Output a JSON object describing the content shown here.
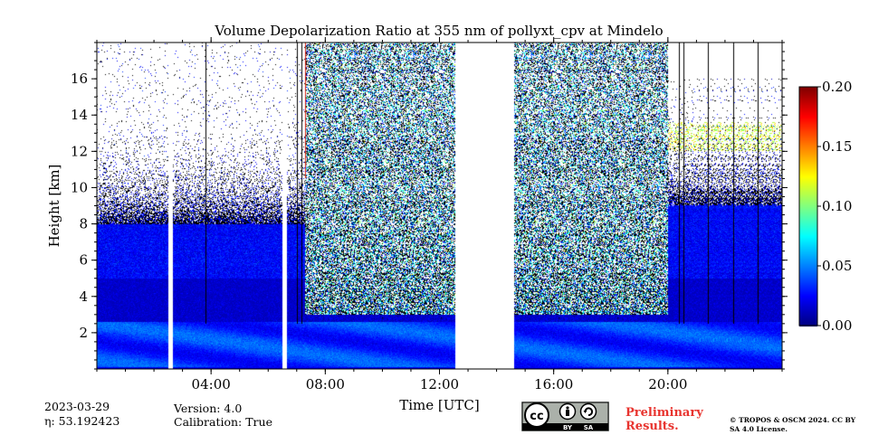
{
  "chart_data": {
    "type": "heatmap",
    "title": "Volume Depolarization Ratio at 355 nm of pollyxt_cpv at Mindelo",
    "xlabel": "Time [UTC]",
    "ylabel": "Height [km]",
    "x_unit": "hours UTC",
    "xlim": [
      0,
      24
    ],
    "ylim": [
      0,
      18
    ],
    "x_ticks": [
      {
        "value": 4,
        "label": "04:00"
      },
      {
        "value": 8,
        "label": "08:00"
      },
      {
        "value": 12,
        "label": "12:00"
      },
      {
        "value": 16,
        "label": "16:00"
      },
      {
        "value": 20,
        "label": "20:00"
      }
    ],
    "y_ticks": [
      {
        "value": 2,
        "label": "2"
      },
      {
        "value": 4,
        "label": "4"
      },
      {
        "value": 6,
        "label": "6"
      },
      {
        "value": 8,
        "label": "8"
      },
      {
        "value": 10,
        "label": "10"
      },
      {
        "value": 12,
        "label": "12"
      },
      {
        "value": 14,
        "label": "14"
      },
      {
        "value": 16,
        "label": "16"
      }
    ],
    "colorbar": {
      "min": 0.0,
      "max": 0.2,
      "colormap": "jet",
      "ticks": [
        {
          "value": 0.0,
          "label": "0.00"
        },
        {
          "value": 0.05,
          "label": "0.05"
        },
        {
          "value": 0.1,
          "label": "0.10"
        },
        {
          "value": 0.15,
          "label": "0.15"
        },
        {
          "value": 0.2,
          "label": "0.20"
        }
      ]
    },
    "data_gaps_hours": [
      [
        2.5,
        2.65
      ],
      [
        6.5,
        6.65
      ],
      [
        12.55,
        14.6
      ]
    ],
    "vertical_lines_hours": [
      3.8,
      7.0,
      7.15,
      20.4,
      20.55,
      21.4,
      22.3,
      23.15
    ],
    "regions": [
      {
        "name": "night",
        "x": [
          0,
          7.3
        ],
        "signal_top_km": 8,
        "noise_top_km": 18
      },
      {
        "name": "daytime",
        "x": [
          7.3,
          12.55
        ],
        "signal_top_km": 3,
        "noise_top_km": 18
      },
      {
        "name": "daytime",
        "x": [
          14.6,
          20.0
        ],
        "signal_top_km": 3,
        "noise_top_km": 18
      },
      {
        "name": "night",
        "x": [
          20.0,
          24
        ],
        "signal_top_km": 9,
        "noise_top_km": 16
      }
    ],
    "layers": [
      {
        "name": "boundary-layer",
        "x": [
          0,
          24
        ],
        "y": [
          0,
          2.5
        ],
        "depol": 0.04
      },
      {
        "name": "cirrus",
        "x": [
          20.0,
          24
        ],
        "y": [
          12,
          13.6
        ],
        "depol": 0.12
      }
    ]
  },
  "footer": {
    "date": "2023-03-29",
    "eta": "η: 53.192423",
    "version": "Version: 4.0",
    "calibration": "Calibration: True",
    "license_badge": "CC BY SA",
    "preliminary": "Preliminary Results.",
    "copyright": "© TROPOS & OSCM 2024. CC BY SA 4.0 License."
  },
  "colors": {
    "gap": "#ffffff",
    "noise": "#000000",
    "prelim_red": "#e8342f"
  },
  "icons": [
    "creative-commons-icon",
    "attribution-icon",
    "share-alike-icon"
  ]
}
